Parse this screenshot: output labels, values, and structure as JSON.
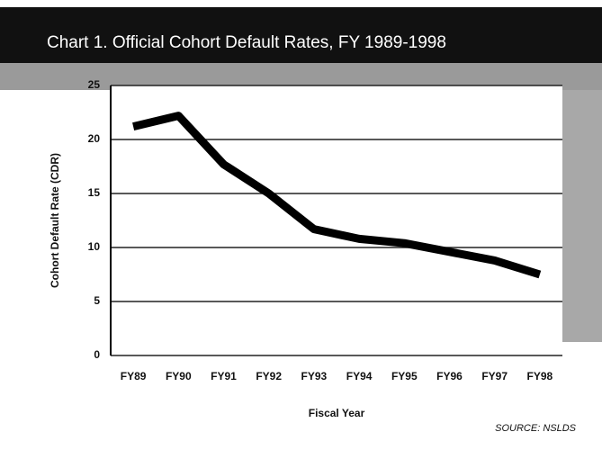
{
  "chart_data": {
    "type": "line",
    "title": "Chart 1. Official Cohort Default Rates, FY 1989-1998",
    "y_label": "Cohort Default Rate (CDR)",
    "x_label": "Fiscal Year",
    "source": "SOURCE: NSLDS",
    "categories": [
      "FY89",
      "FY90",
      "FY91",
      "FY92",
      "FY93",
      "FY94",
      "FY95",
      "FY96",
      "FY97",
      "FY98"
    ],
    "series": [
      {
        "name": "Cohort Default Rate",
        "color": "#000000",
        "values": [
          21.2,
          22.2,
          17.7,
          15.0,
          11.7,
          10.8,
          10.4,
          9.6,
          8.8,
          7.5
        ]
      }
    ],
    "ylim": [
      0,
      25
    ],
    "yticks": [
      0,
      5,
      10,
      15,
      20,
      25
    ],
    "grid": true
  }
}
